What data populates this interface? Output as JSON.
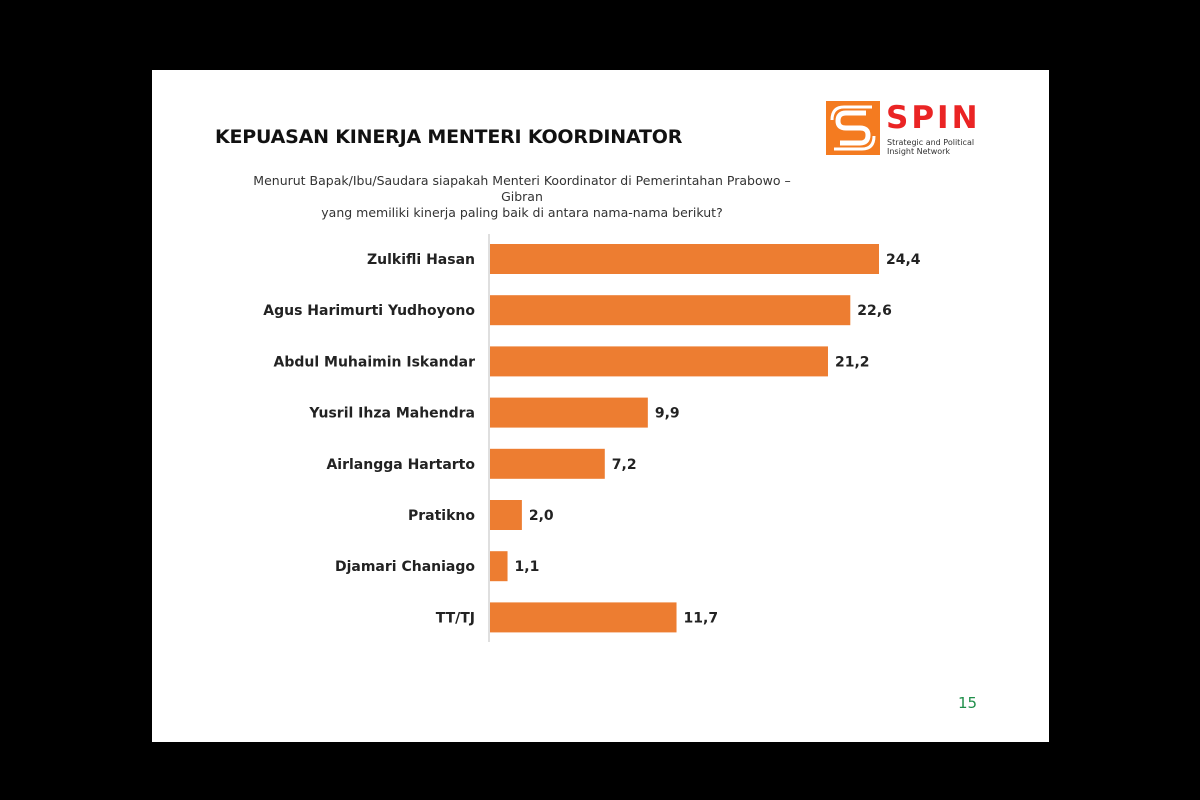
{
  "slide": {
    "title": "KEPUASAN KINERJA MENTERI KOORDINATOR",
    "question_line1": "Menurut Bapak/Ibu/Saudara siapakah Menteri Koordinator di Pemerintahan Prabowo –Gibran",
    "question_line2": "yang memiliki kinerja paling baik di antara nama-nama berikut?",
    "page_number": "15"
  },
  "logo": {
    "name": "SPIN",
    "tagline_line1": "Strategic and Political",
    "tagline_line2": "Insight Network",
    "colors": {
      "orange": "#f47b20",
      "red": "#ea2424"
    }
  },
  "chart_data": {
    "type": "bar",
    "orientation": "horizontal",
    "categories": [
      "Zulkifli Hasan",
      "Agus Harimurti Yudhoyono",
      "Abdul Muhaimin Iskandar",
      "Yusril Ihza Mahendra",
      "Airlangga Hartarto",
      "Pratikno",
      "Djamari Chaniago",
      "TT/TJ"
    ],
    "values": [
      24.4,
      22.6,
      21.2,
      9.9,
      7.2,
      2.0,
      1.1,
      11.7
    ],
    "value_labels": [
      "24,4",
      "22,6",
      "21,2",
      "9,9",
      "7,2",
      "2,0",
      "1,1",
      "11,7"
    ],
    "xlim": [
      0,
      24.4
    ],
    "bar_color": "#ed7d31",
    "grid": false,
    "legend": "none"
  }
}
